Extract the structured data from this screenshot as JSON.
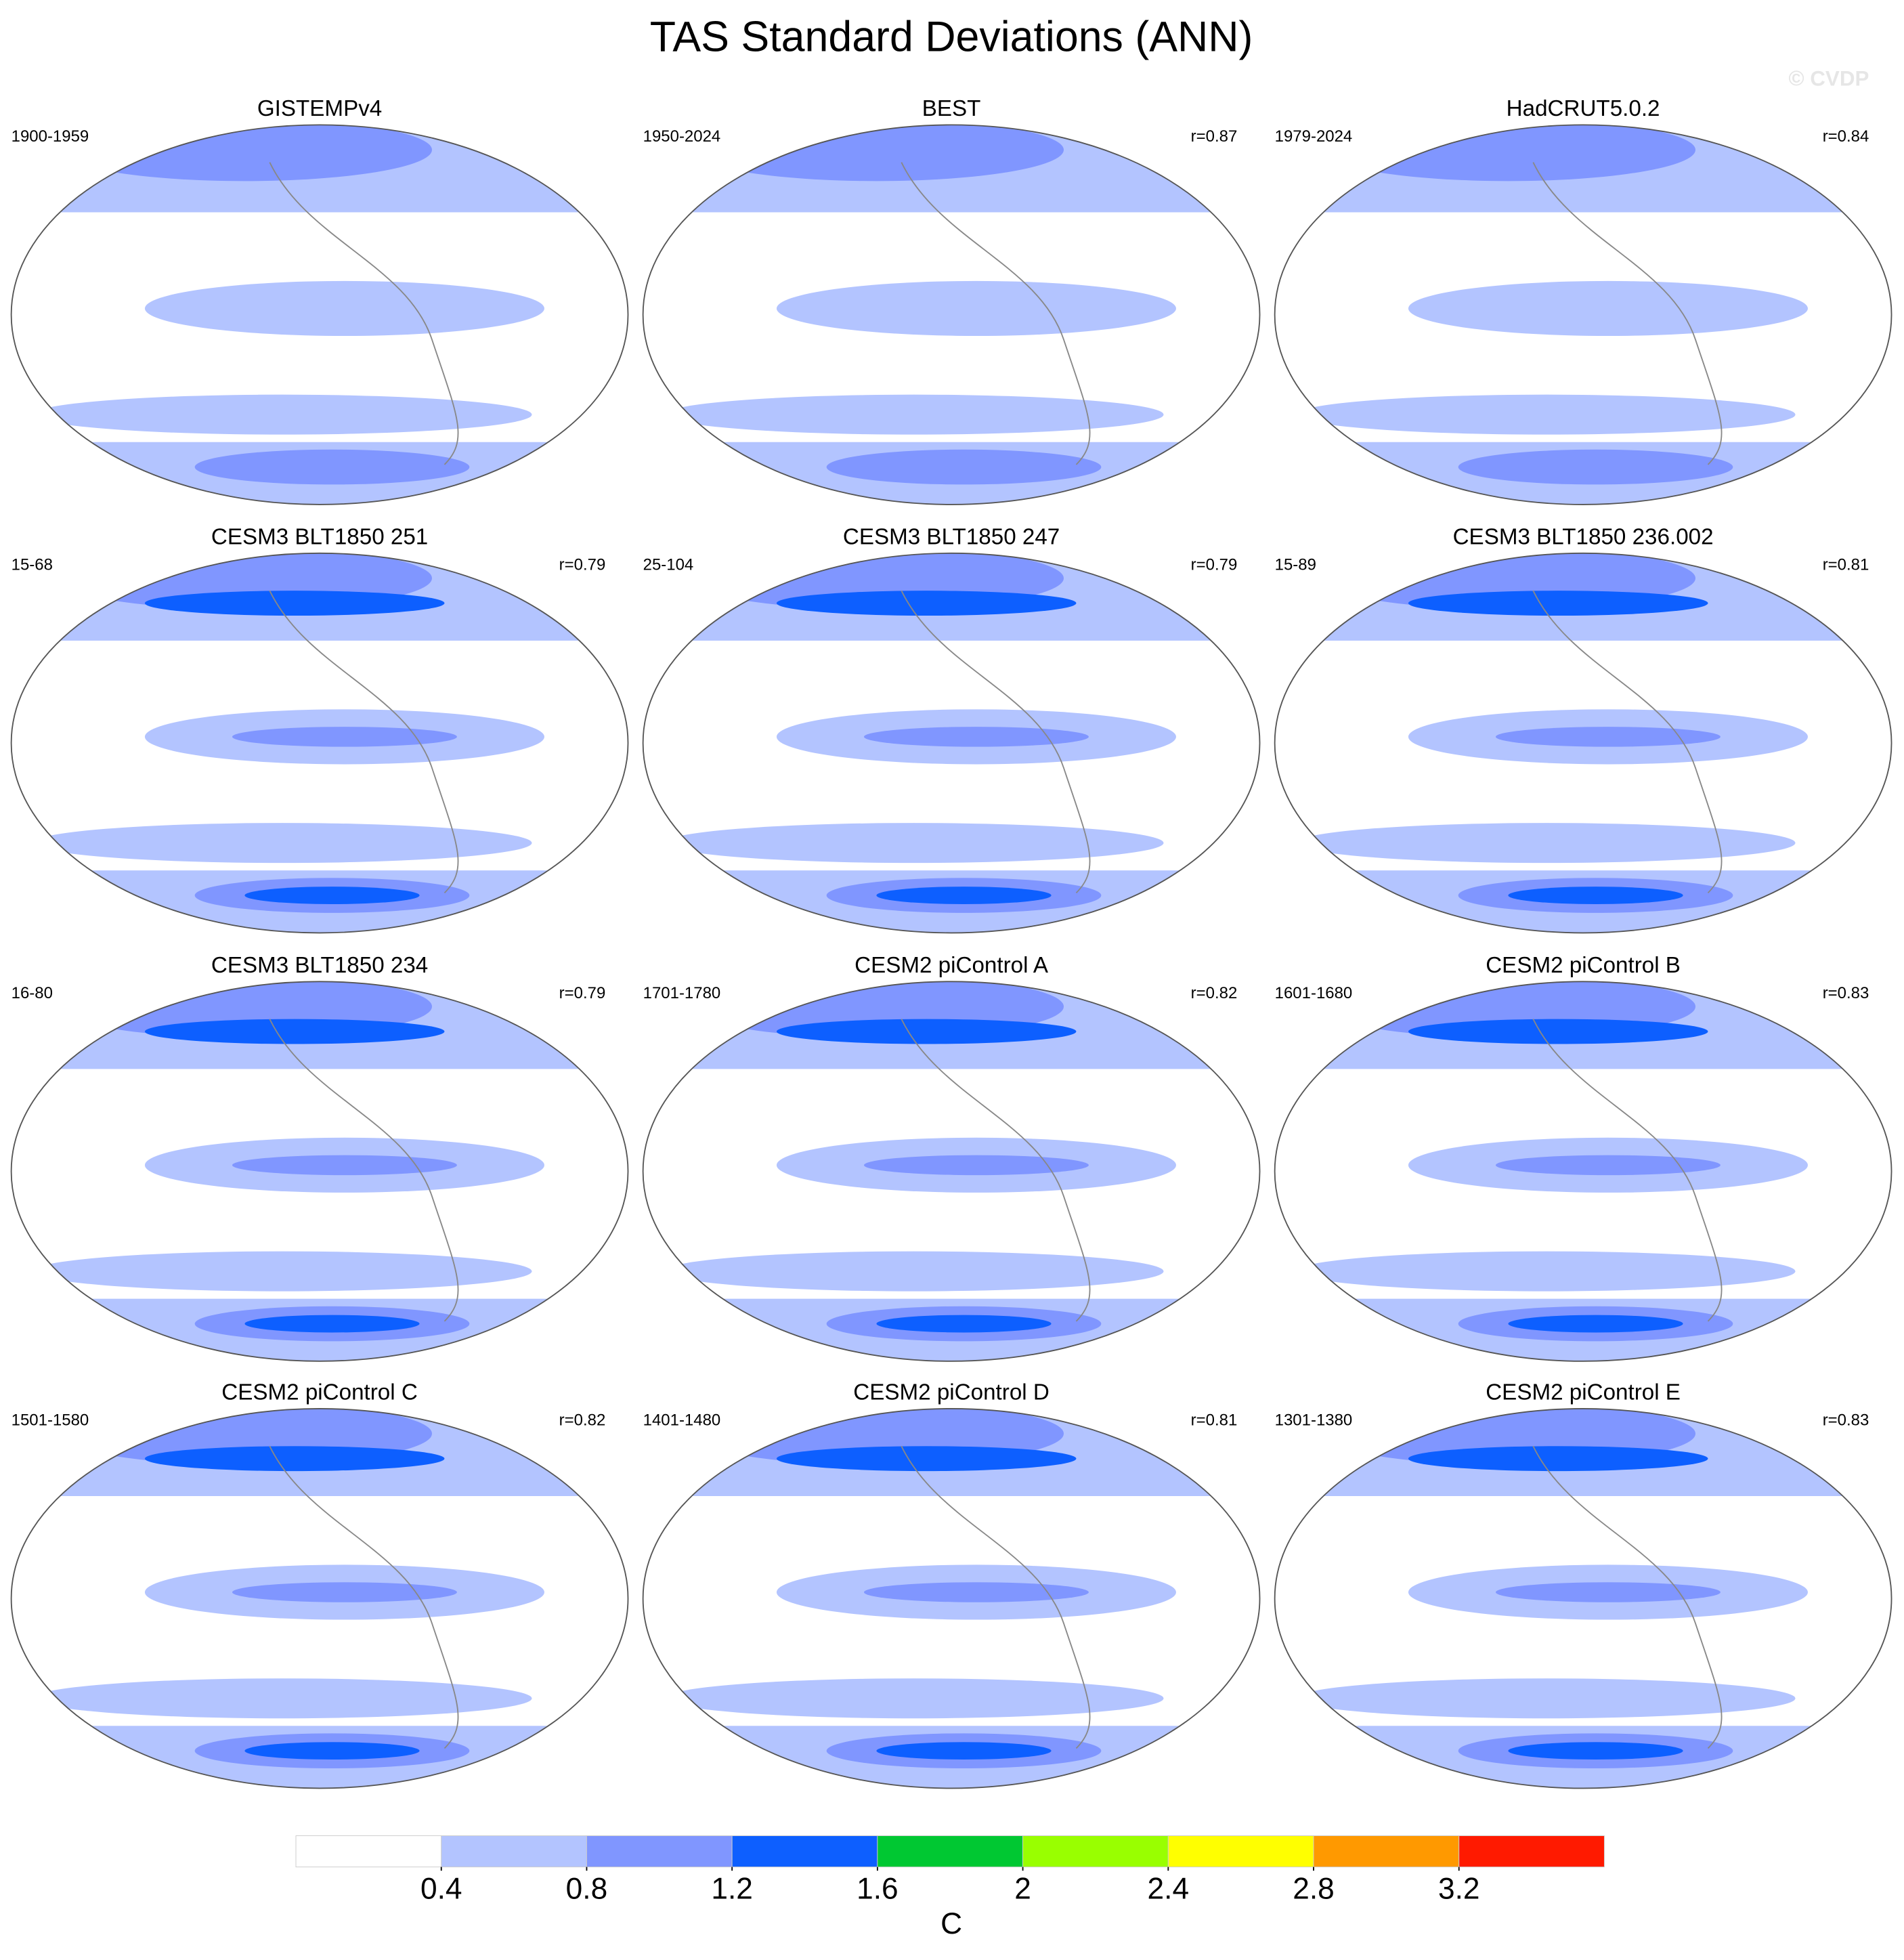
{
  "title": "TAS Standard Deviations (ANN)",
  "watermark": "© CVDP",
  "panels": [
    {
      "title": "GISTEMPv4",
      "period": "1900-1959"
    },
    {
      "title": "BEST",
      "period": "1950-2024",
      "r": "r=0.87"
    },
    {
      "title": "HadCRUT5.0.2",
      "period": "1979-2024",
      "r": "r=0.84"
    },
    {
      "title": "CESM3 BLT1850 251",
      "period": "15-68",
      "r": "r=0.79"
    },
    {
      "title": "CESM3 BLT1850 247",
      "period": "25-104",
      "r": "r=0.79"
    },
    {
      "title": "CESM3 BLT1850 236.002",
      "period": "15-89",
      "r": "r=0.81"
    },
    {
      "title": "CESM3 BLT1850 234",
      "period": "16-80",
      "r": "r=0.79"
    },
    {
      "title": "CESM2 piControl A",
      "period": "1701-1780",
      "r": "r=0.82"
    },
    {
      "title": "CESM2 piControl B",
      "period": "1601-1680",
      "r": "r=0.83"
    },
    {
      "title": "CESM2 piControl C",
      "period": "1501-1580",
      "r": "r=0.82"
    },
    {
      "title": "CESM2 piControl D",
      "period": "1401-1480",
      "r": "r=0.81"
    },
    {
      "title": "CESM2 piControl E",
      "period": "1301-1380",
      "r": "r=0.83"
    }
  ],
  "colorbar": {
    "levels": [
      0.4,
      0.8,
      1.2,
      1.6,
      2,
      2.4,
      2.8,
      3.2
    ],
    "colors": [
      "#ffffff",
      "#b3c4ff",
      "#8096ff",
      "#0d5fff",
      "#00c832",
      "#99ff00",
      "#ffff00",
      "#ff9900",
      "#ff1a00"
    ],
    "label": "C"
  }
}
